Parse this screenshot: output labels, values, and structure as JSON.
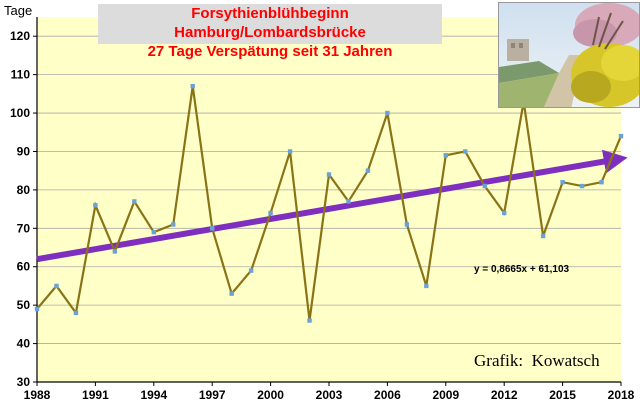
{
  "chart_data": {
    "type": "line",
    "title": "Forsythienblühbeginn  Hamburg/Lombardsbrücke",
    "subtitle": "27 Tage Verspätung seit 31 Jahren",
    "ylabel": "Tage",
    "xlabel": "",
    "x": [
      1988,
      1989,
      1990,
      1991,
      1992,
      1993,
      1994,
      1995,
      1996,
      1997,
      1998,
      1999,
      2000,
      2001,
      2002,
      2003,
      2004,
      2005,
      2006,
      2007,
      2008,
      2009,
      2010,
      2011,
      2012,
      2013,
      2014,
      2015,
      2016,
      2017,
      2018
    ],
    "values": [
      49,
      55,
      48,
      76,
      64,
      77,
      69,
      71,
      107,
      70,
      53,
      59,
      74,
      90,
      46,
      84,
      77,
      85,
      100,
      71,
      55,
      89,
      90,
      81,
      74,
      103,
      68,
      82,
      81,
      82,
      94
    ],
    "ylim": [
      30,
      125
    ],
    "xlim": [
      1988,
      2018
    ],
    "yticks": [
      "30",
      "40",
      "50",
      "60",
      "70",
      "80",
      "90",
      "100",
      "110",
      "120"
    ],
    "xticks": [
      "1988",
      "1991",
      "1994",
      "1997",
      "2000",
      "2003",
      "2006",
      "2009",
      "2012",
      "2015",
      "2018"
    ],
    "trendline": {
      "slope": 0.8665,
      "intercept": 61.103,
      "equation": "y = 0,8665x + 61,103"
    },
    "grid": true,
    "credit": "Grafik:  Kowatsch",
    "colors": {
      "plot_background": "#ffffc8",
      "line": "#8a7316",
      "marker": "#6aa2d8",
      "trend": "#7f2fc0",
      "grid": "#aaaaaa",
      "title": "#ff0000"
    }
  }
}
